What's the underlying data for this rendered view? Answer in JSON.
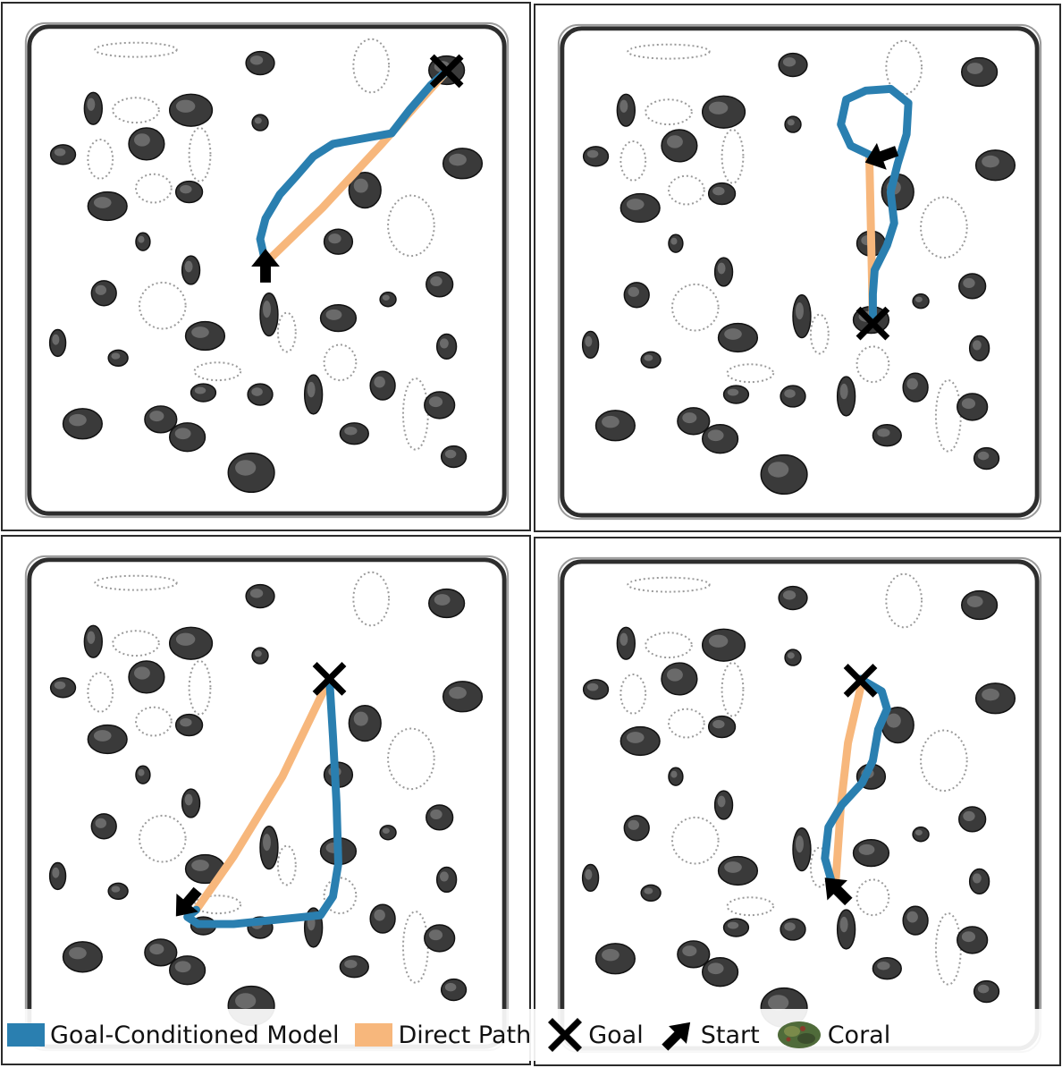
{
  "legend": {
    "model_label": "Goal-Conditioned Model",
    "direct_label": "Direct Path",
    "goal_label": "Goal",
    "start_label": "Start",
    "coral_label": "Coral"
  },
  "colors": {
    "model": "#2a7fb0",
    "direct": "#f7b77c",
    "marker": "#000000",
    "coral_dark": "#3a3a3a",
    "coral_legend": "#4f6b3a",
    "wall": "#2e2e2e"
  },
  "icons": {
    "goal": "x-cross-icon",
    "start": "arrow-icon",
    "coral": "coral-icon"
  }
}
